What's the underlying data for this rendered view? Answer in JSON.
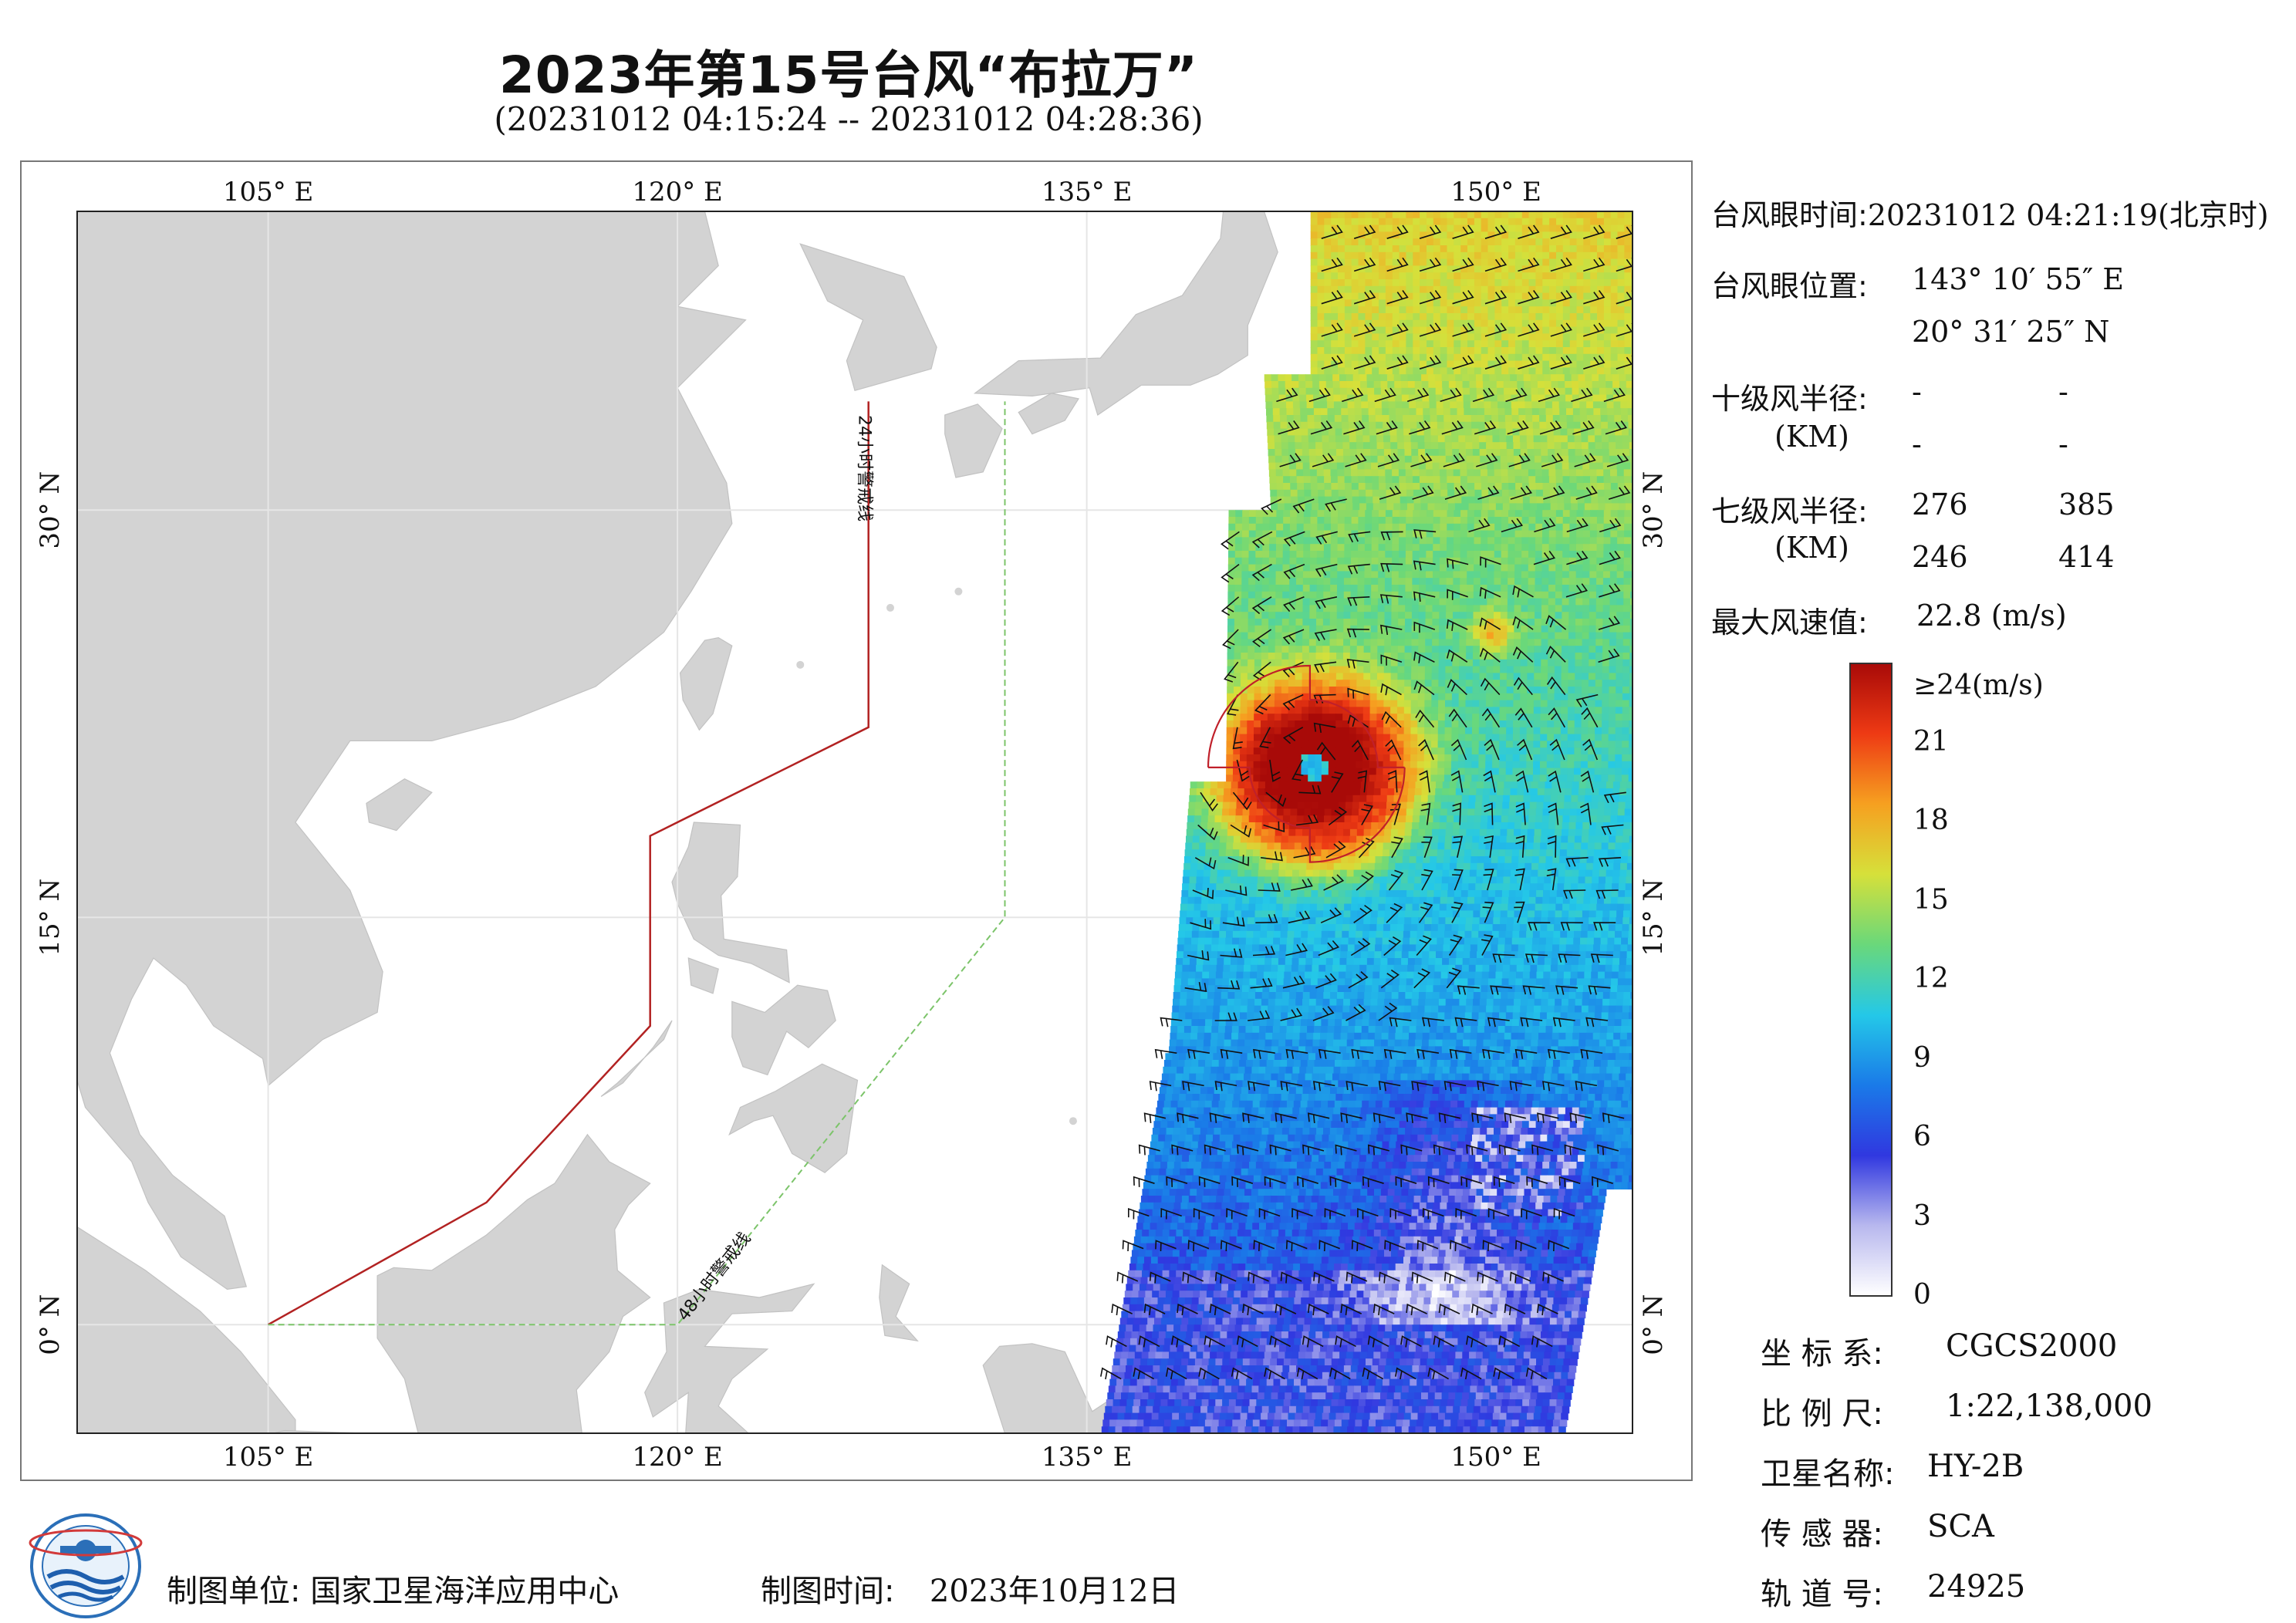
{
  "title": "2023年第15号台风“布拉万”",
  "subtitle": "(20231012 04:15:24 -- 20231012 04:28:36)",
  "map": {
    "lon_ticks": [
      {
        "value": 105,
        "label": "105° E"
      },
      {
        "value": 120,
        "label": "120° E"
      },
      {
        "value": 135,
        "label": "135° E"
      },
      {
        "value": 150,
        "label": "150° E"
      }
    ],
    "lat_ticks": [
      {
        "value": 0,
        "label": "0° N"
      },
      {
        "value": 15,
        "label": "15° N"
      },
      {
        "value": 30,
        "label": "30° N"
      }
    ],
    "extent": {
      "lon_min": 98,
      "lon_max": 155,
      "lat_min": -4,
      "lat_max": 41
    },
    "warning_24h_label": "24小时警戒线",
    "warning_48h_label": "48小时警戒线",
    "warning_24h_line": [
      [
        105,
        0
      ],
      [
        113,
        4.5
      ],
      [
        119,
        11
      ],
      [
        119,
        18
      ],
      [
        127,
        22
      ],
      [
        127,
        34
      ]
    ],
    "warning_48h_line": [
      [
        105,
        0
      ],
      [
        120,
        0
      ],
      [
        132,
        15
      ],
      [
        132,
        34
      ]
    ],
    "typhoon_eye": {
      "lon": 143.18,
      "lat": 20.52
    },
    "colors": {
      "land": "#d3d3d3",
      "ocean": "#ffffff",
      "warning_24h": "#b22222",
      "warning_48h": "#7cc46a",
      "radius_circle": "#c0202a"
    }
  },
  "info": {
    "eye_time_label": "台风眼时间:",
    "eye_time_value": "20231012 04:21:19(北京时)",
    "eye_pos_label": "台风眼位置:",
    "eye_lon": "143° 10′ 55″ E",
    "eye_lat": "20° 31′ 25″ N",
    "r10_label": "十级风半径:",
    "r10_unit": "(KM)",
    "r10_values": [
      "-",
      "-",
      "-",
      "-"
    ],
    "r7_label": "七级风半径:",
    "r7_unit": "(KM)",
    "r7_values": [
      "276",
      "385",
      "246",
      "414"
    ],
    "max_wind_label": "最大风速值:",
    "max_wind_value": "22.8 (m/s)"
  },
  "colorbar": {
    "top_label": "≥24(m/s)",
    "ticks": [
      "21",
      "18",
      "15",
      "12",
      "9",
      "6",
      "3",
      "0"
    ],
    "colors": [
      "#ffffff",
      "#b8b8ee",
      "#3038e0",
      "#1a7ae8",
      "#24c8e8",
      "#6ad87a",
      "#d6e03a",
      "#f6a020",
      "#ee3a14",
      "#a80a08"
    ]
  },
  "meta": {
    "crs_label": "坐 标 系:",
    "crs_value": "CGCS2000",
    "scale_label": "比 例 尺:",
    "scale_value": "1:22,138,000",
    "satellite_label": "卫星名称:",
    "satellite_value": "HY-2B",
    "sensor_label": "传 感 器:",
    "sensor_value": "SCA",
    "orbit_label": "轨 道 号:",
    "orbit_value": "24925"
  },
  "footer": {
    "org_label": "制图单位:",
    "org_value": "国家卫星海洋应用中心",
    "date_label": "制图时间:",
    "date_value": "2023年10月12日"
  }
}
